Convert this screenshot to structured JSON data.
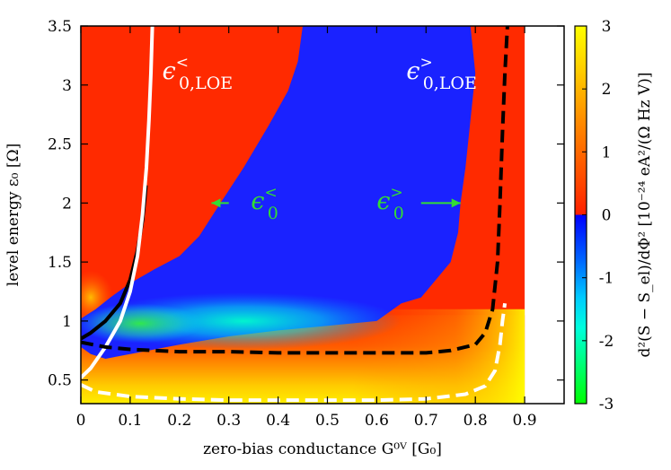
{
  "chart_data": {
    "type": "heatmap",
    "xlabel": "zero-bias conductance G⁰ⱽ [G₀]",
    "ylabel": "level energy ε₀ [Ω]",
    "colorbar_label": "d²(S − S_el)/dΦ² [10⁻²⁴ eA²/(Ω Hz V)]",
    "xlim": [
      0,
      0.98
    ],
    "ylim": [
      0.3,
      3.5
    ],
    "x_ticks": [
      "0",
      "0.1",
      "0.2",
      "0.3",
      "0.4",
      "0.5",
      "0.6",
      "0.7",
      "0.8",
      "0.9"
    ],
    "y_ticks": [
      "0.5",
      "1",
      "1.5",
      "2",
      "2.5",
      "3",
      "3.5"
    ],
    "colorbar_ticks": [
      "-3",
      "-2",
      "-1",
      "0",
      "1",
      "2",
      "3"
    ],
    "colorbar_range": [
      -3,
      3
    ],
    "data_extent_x": [
      0,
      0.9
    ],
    "regions": [
      {
        "name": "negative-region",
        "level": "negative",
        "boundary": [
          [
            0,
            1.02
          ],
          [
            0.03,
            1.1
          ],
          [
            0.06,
            1.2
          ],
          [
            0.1,
            1.32
          ],
          [
            0.15,
            1.44
          ],
          [
            0.2,
            1.55
          ],
          [
            0.24,
            1.72
          ],
          [
            0.28,
            1.98
          ],
          [
            0.33,
            2.3
          ],
          [
            0.38,
            2.65
          ],
          [
            0.42,
            2.95
          ],
          [
            0.44,
            3.2
          ],
          [
            0.45,
            3.5
          ],
          [
            0.79,
            3.5
          ],
          [
            0.8,
            3.1
          ],
          [
            0.79,
            2.7
          ],
          [
            0.78,
            2.3
          ],
          [
            0.77,
            2.0
          ],
          [
            0.765,
            1.75
          ],
          [
            0.75,
            1.5
          ],
          [
            0.72,
            1.35
          ],
          [
            0.69,
            1.2
          ],
          [
            0.65,
            1.15
          ],
          [
            0.6,
            1.0
          ],
          [
            0.5,
            0.96
          ],
          [
            0.4,
            0.92
          ],
          [
            0.3,
            0.87
          ],
          [
            0.2,
            0.8
          ],
          [
            0.1,
            0.72
          ],
          [
            0.05,
            0.68
          ],
          [
            0.02,
            0.72
          ],
          [
            0,
            0.78
          ]
        ]
      }
    ],
    "annotations": [
      {
        "text": "ϵ<",
        "sub": "0,LOE",
        "color": "#ffffff",
        "x": 0.165,
        "y": 3.05
      },
      {
        "text": "ϵ>",
        "sub": "0,LOE",
        "color": "#ffffff",
        "x": 0.66,
        "y": 3.05
      },
      {
        "text": "ϵ<",
        "sub": "0",
        "color": "#33dd33",
        "x": 0.345,
        "y": 1.95
      },
      {
        "text": "ϵ>",
        "sub": "0",
        "color": "#33dd33",
        "x": 0.6,
        "y": 1.95
      }
    ],
    "series": [
      {
        "style": "solid",
        "color": "#000000",
        "x": [
          0,
          0.02,
          0.05,
          0.08,
          0.1,
          0.115,
          0.125,
          0.13,
          0.132
        ],
        "y": [
          0.85,
          0.9,
          1.0,
          1.15,
          1.35,
          1.6,
          1.85,
          2.05,
          2.15
        ]
      },
      {
        "style": "solid",
        "color": "#ffffff",
        "x": [
          0,
          0.02,
          0.05,
          0.08,
          0.1,
          0.115,
          0.125,
          0.133,
          0.138,
          0.142,
          0.145
        ],
        "y": [
          0.52,
          0.6,
          0.78,
          1.0,
          1.25,
          1.55,
          1.9,
          2.3,
          2.7,
          3.1,
          3.5
        ]
      },
      {
        "style": "dashed",
        "color": "#000000",
        "x": [
          0,
          0.05,
          0.1,
          0.2,
          0.3,
          0.4,
          0.5,
          0.6,
          0.7,
          0.75,
          0.8,
          0.82,
          0.835,
          0.845,
          0.85,
          0.855,
          0.86,
          0.865
        ],
        "y": [
          0.82,
          0.78,
          0.76,
          0.74,
          0.74,
          0.73,
          0.73,
          0.73,
          0.73,
          0.75,
          0.8,
          0.9,
          1.1,
          1.5,
          2.0,
          2.6,
          3.1,
          3.5
        ]
      },
      {
        "style": "dashed",
        "color": "#ffffff",
        "x": [
          0,
          0.03,
          0.1,
          0.2,
          0.3,
          0.4,
          0.5,
          0.6,
          0.7,
          0.78,
          0.82,
          0.84,
          0.85,
          0.855,
          0.86
        ],
        "y": [
          0.46,
          0.4,
          0.36,
          0.34,
          0.33,
          0.33,
          0.33,
          0.33,
          0.34,
          0.38,
          0.45,
          0.58,
          0.8,
          1.0,
          1.15
        ]
      }
    ]
  }
}
